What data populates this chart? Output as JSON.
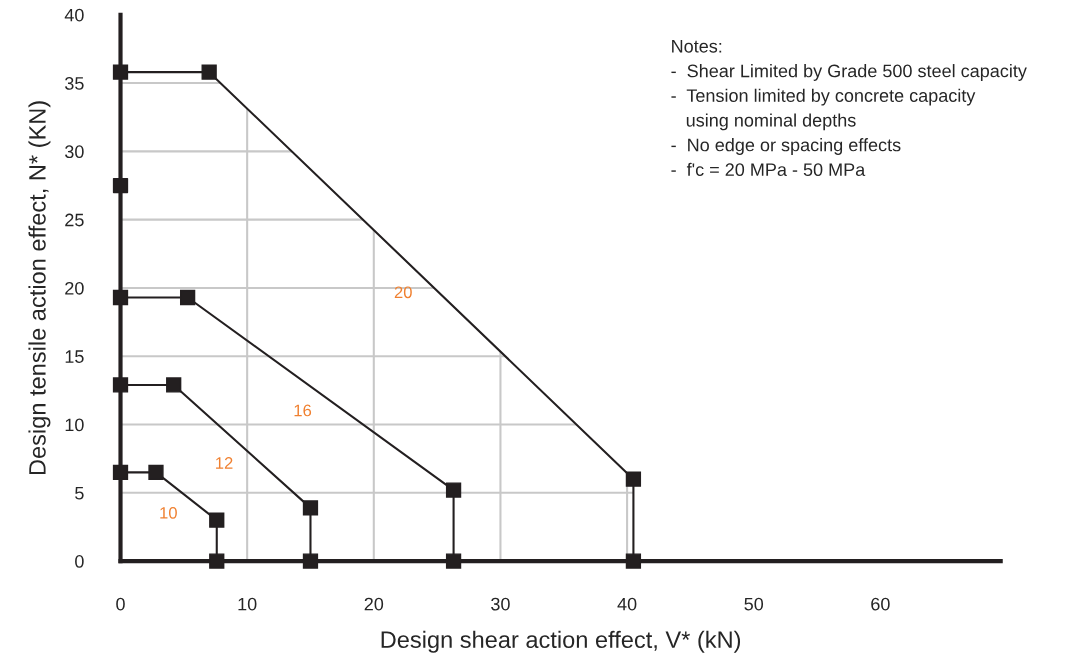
{
  "chart_data": {
    "type": "line",
    "xlabel": "Design shear action effect, V* (kN)",
    "ylabel": "Design tensile action effect, N* (KN)",
    "xlim": [
      0,
      69.5
    ],
    "ylim": [
      0,
      40
    ],
    "xticks": [
      0,
      10,
      20,
      30,
      40,
      50,
      60
    ],
    "yticks": [
      0,
      5,
      10,
      15,
      20,
      25,
      30,
      35,
      40
    ],
    "grid": true,
    "marker": "square",
    "line_style": "solid",
    "series": [
      {
        "name": "10",
        "color": "#231f20",
        "x": [
          0,
          2.8,
          7.6,
          7.6
        ],
        "values": [
          6.5,
          6.5,
          3.0,
          0
        ]
      },
      {
        "name": "12",
        "color": "#231f20",
        "x": [
          0,
          4.2,
          15,
          15
        ],
        "values": [
          12.9,
          12.9,
          3.9,
          0
        ]
      },
      {
        "name": "16",
        "color": "#231f20",
        "x": [
          0,
          5.3,
          26.3,
          26.3
        ],
        "values": [
          19.3,
          19.3,
          5.2,
          0
        ]
      },
      {
        "name": "20",
        "color": "#231f20",
        "x": [
          0,
          7.0,
          40.5,
          40.5
        ],
        "values": [
          35.8,
          35.8,
          6.0,
          0
        ]
      },
      {
        "type": "scatter",
        "color": "#231f20",
        "x": [
          0
        ],
        "values": [
          27.5
        ]
      }
    ],
    "annotations": [
      "Notes:\n-  Shear Limited by Grade 500 steel capacity\n-  Tension limited by concrete capacity\n   using nominal depths\n-  No edge or spacing effects\n-  f'c = 20 MPa - 50 MPa"
    ]
  }
}
